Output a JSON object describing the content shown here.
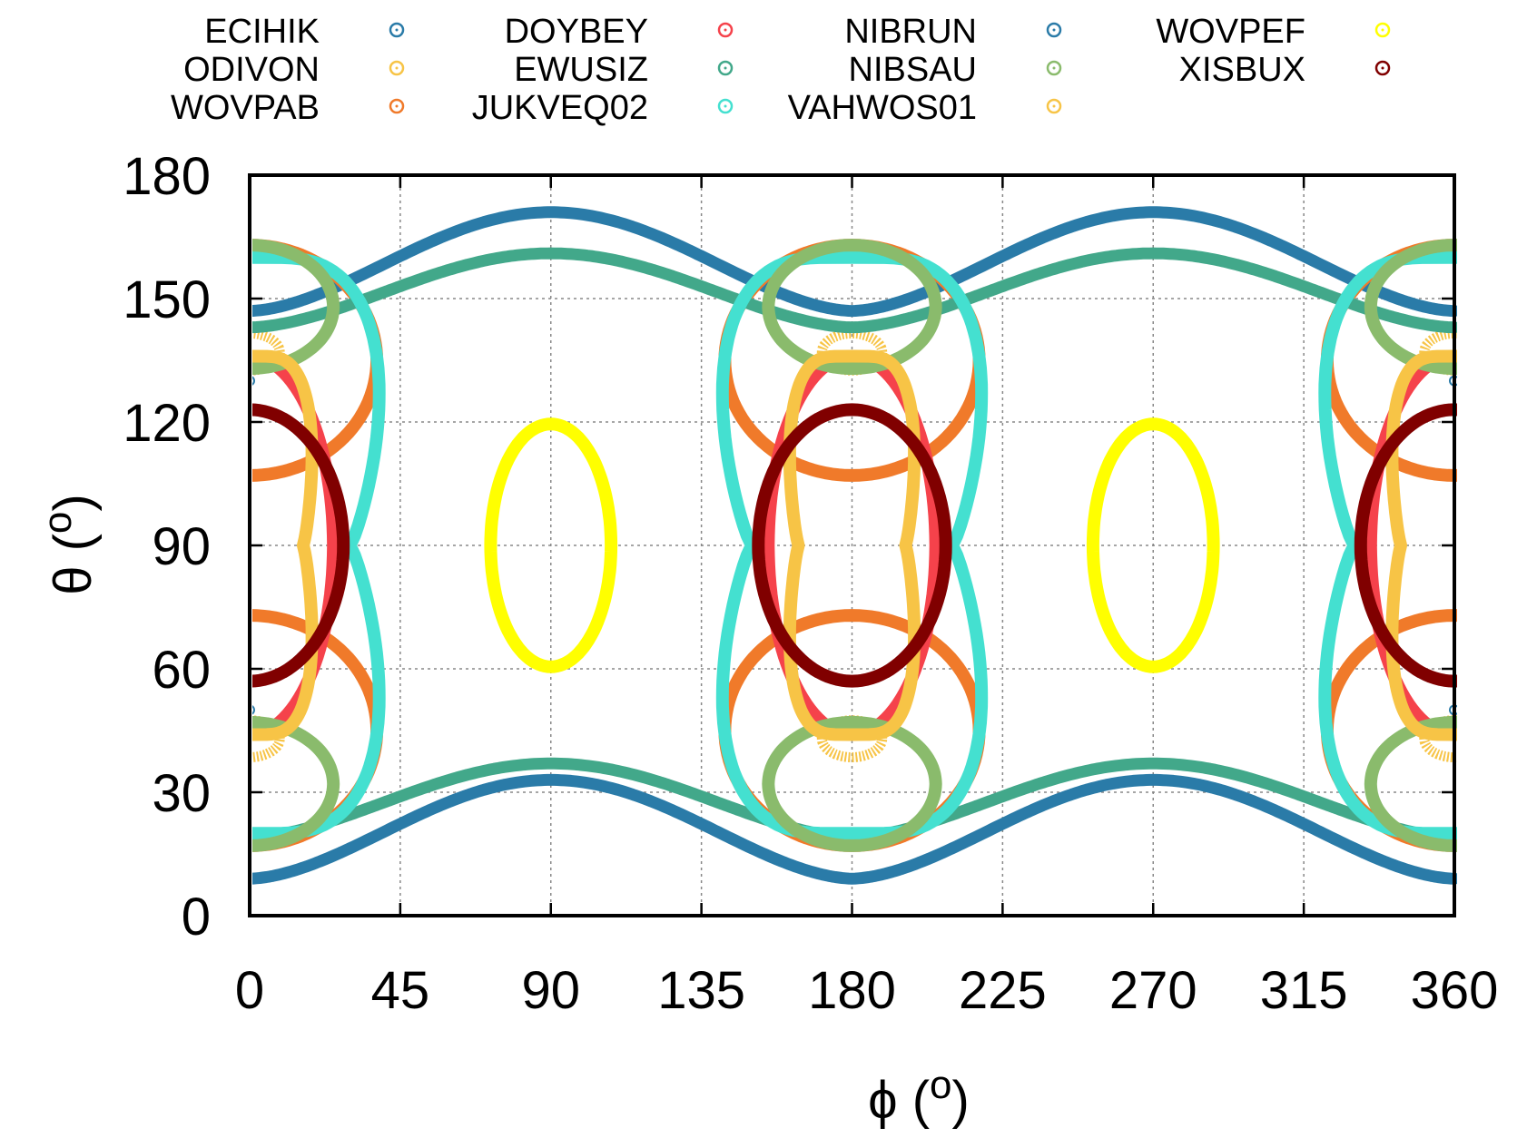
{
  "chart_data": {
    "type": "scatter",
    "xlabel_symbol": "ϕ",
    "xlabel_unit": "o",
    "ylabel_symbol": "θ",
    "ylabel_unit": "o",
    "xlim": [
      0,
      360
    ],
    "ylim": [
      0,
      180
    ],
    "xticks": [
      0,
      45,
      90,
      135,
      180,
      225,
      270,
      315,
      360
    ],
    "yticks": [
      0,
      30,
      60,
      90,
      120,
      150,
      180
    ],
    "grid": true,
    "legend_placement": "top",
    "series": [
      {
        "name": "ECIHIK",
        "color": "#2a7ba8",
        "shape": "sine-band",
        "period": 180,
        "center": 90,
        "upper_min": 147,
        "upper_max": 171,
        "lower_min": 9,
        "lower_max": 33
      },
      {
        "name": "ODIVON",
        "color": "#f7c446",
        "shape": "ring",
        "centers": [
          [
            0,
            137
          ],
          [
            0,
            43
          ],
          [
            180,
            137
          ],
          [
            180,
            43
          ],
          [
            360,
            137
          ],
          [
            360,
            43
          ]
        ],
        "rx": 9,
        "ry": 4.5
      },
      {
        "name": "WOVPAB",
        "color": "#f07a2a",
        "shape": "lobes",
        "centers": [
          [
            0,
            90
          ],
          [
            180,
            90
          ],
          [
            360,
            90
          ]
        ],
        "outer_top": 163,
        "outer_bottom": 17,
        "inner_top": 107,
        "inner_bottom": 73,
        "half_width": 38
      },
      {
        "name": "DOYBEY",
        "color": "#f5424b",
        "shape": "ellipse",
        "centers": [
          [
            0,
            90
          ],
          [
            180,
            90
          ],
          [
            360,
            90
          ]
        ],
        "rx": 25,
        "ry": 46
      },
      {
        "name": "EWUSIZ",
        "color": "#42a88a",
        "shape": "sine-band",
        "period": 180,
        "center": 90,
        "upper_min": 143,
        "upper_max": 161,
        "lower_min": 19,
        "lower_max": 37
      },
      {
        "name": "JUKVEQ02",
        "color": "#44e0d0",
        "shape": "peanut",
        "centers": [
          [
            0,
            90
          ],
          [
            180,
            90
          ],
          [
            360,
            90
          ]
        ],
        "top": 160,
        "bottom": 20,
        "half_width_max": 42,
        "half_width_waist": 30
      },
      {
        "name": "NIBRUN",
        "color": "#2a7ba8",
        "shape": "marker",
        "points": [
          [
            0,
            130
          ],
          [
            0,
            50
          ],
          [
            360,
            130
          ],
          [
            360,
            50
          ]
        ]
      },
      {
        "name": "NIBSAU",
        "color": "#8abb6c",
        "shape": "ellipse",
        "centers": [
          [
            0,
            148
          ],
          [
            0,
            32
          ],
          [
            180,
            148
          ],
          [
            180,
            32
          ],
          [
            360,
            148
          ],
          [
            360,
            32
          ]
        ],
        "rx": 25,
        "ry": 15
      },
      {
        "name": "VAHWOS01",
        "color": "#f7c446",
        "shape": "peanut",
        "centers": [
          [
            0,
            90
          ],
          [
            180,
            90
          ],
          [
            360,
            90
          ]
        ],
        "top": 136,
        "bottom": 44,
        "half_width_max": 20,
        "half_width_waist": 16
      },
      {
        "name": "WOVPEF",
        "color": "#ffff00",
        "shape": "ellipse",
        "centers": [
          [
            90,
            90
          ],
          [
            270,
            90
          ]
        ],
        "rx": 18,
        "ry": 29.5
      },
      {
        "name": "XISBUX",
        "color": "#800000",
        "shape": "ellipse",
        "centers": [
          [
            0,
            90
          ],
          [
            180,
            90
          ],
          [
            360,
            90
          ]
        ],
        "rx": 28,
        "ry": 33
      }
    ]
  }
}
